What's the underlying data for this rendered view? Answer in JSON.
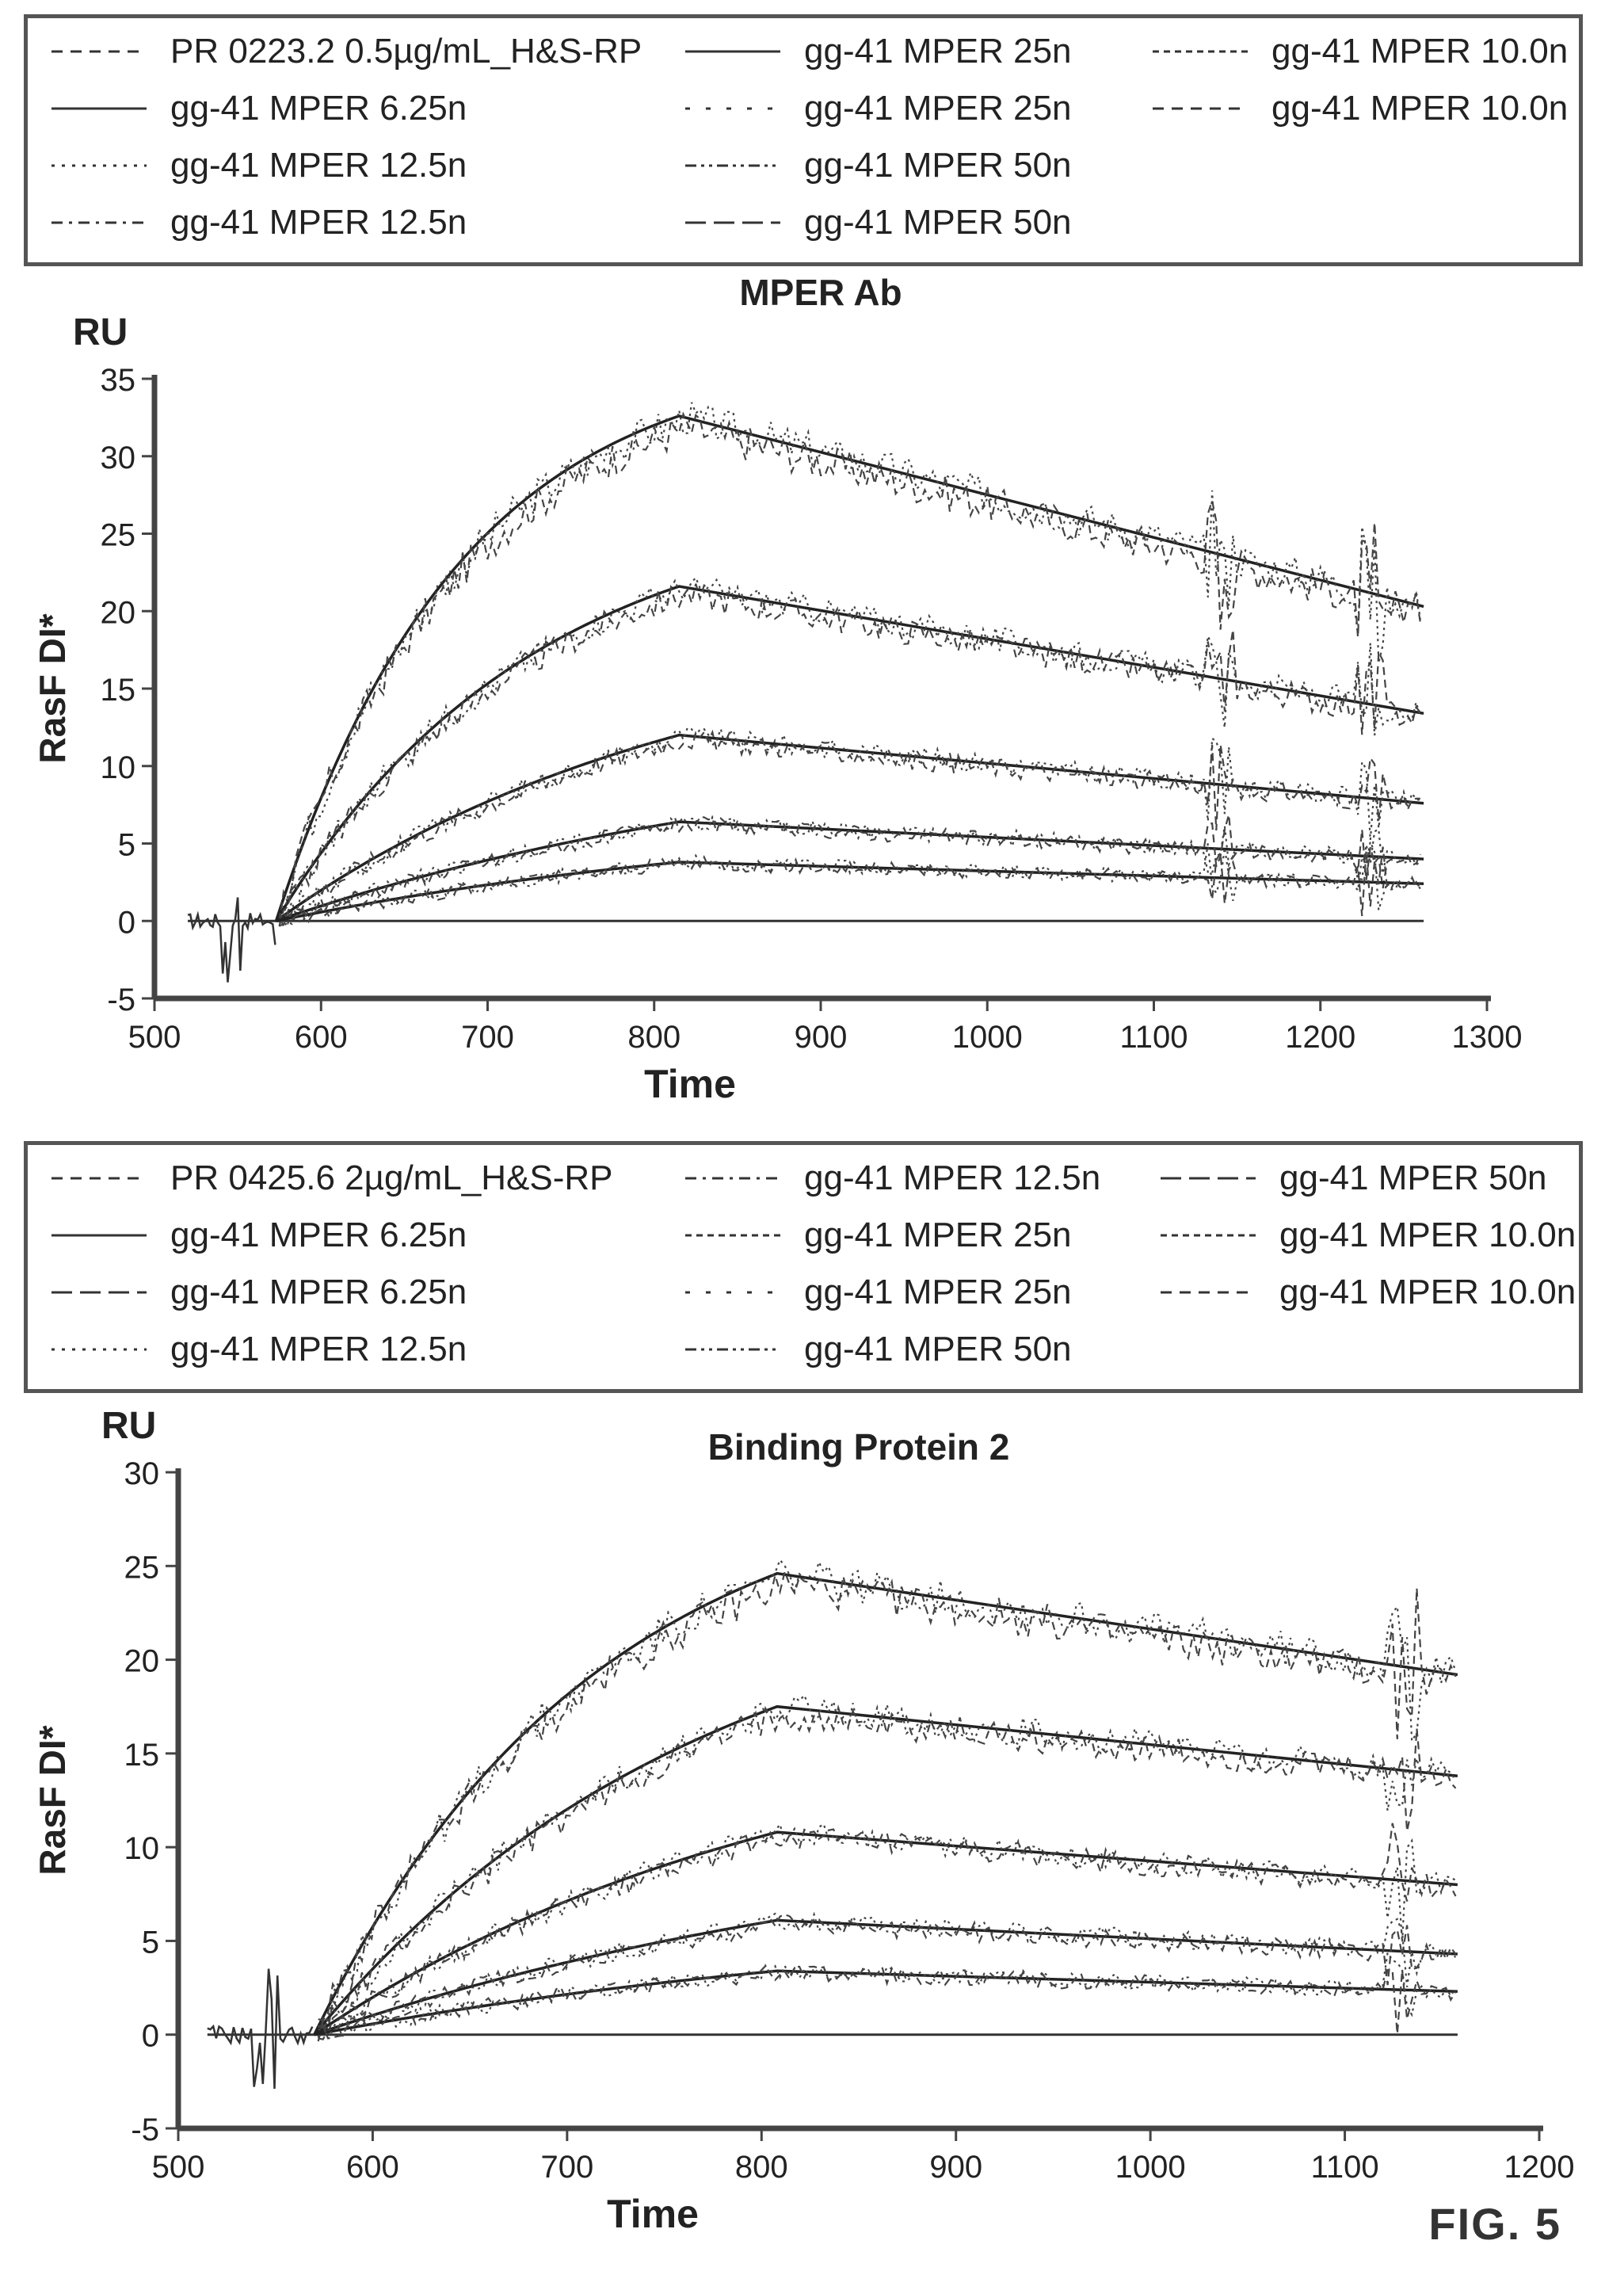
{
  "figure_label": "FIG. 5",
  "charts": [
    {
      "legend": [
        {
          "label": "PR 0223.2 0.5µg/mL_H&S-RP",
          "dash": "dashed"
        },
        {
          "label": "gg-41 MPER 6.25n",
          "dash": "solid"
        },
        {
          "label": "gg-41 MPER 12.5n",
          "dash": "dotted"
        },
        {
          "label": "gg-41 MPER 12.5n",
          "dash": "dashdot"
        },
        {
          "label": "gg-41 MPER 25n",
          "dash": "solid"
        },
        {
          "label": "gg-41 MPER 25n",
          "dash": "sparse"
        },
        {
          "label": "gg-41 MPER 50n",
          "dash": "dashdotdot"
        },
        {
          "label": "gg-41 MPER 50n",
          "dash": "longdash"
        },
        {
          "label": "gg-41 MPER 10.0n",
          "dash": "finedash"
        },
        {
          "label": "gg-41 MPER 10.0n",
          "dash": "dashed"
        }
      ]
    },
    {
      "legend": [
        {
          "label": "PR 0425.6  2µg/mL_H&S-RP",
          "dash": "dashed"
        },
        {
          "label": "gg-41 MPER 6.25n",
          "dash": "solid"
        },
        {
          "label": "gg-41 MPER 6.25n",
          "dash": "longdash"
        },
        {
          "label": "gg-41 MPER 12.5n",
          "dash": "dotted"
        },
        {
          "label": "gg-41 MPER 12.5n",
          "dash": "dashdot"
        },
        {
          "label": "gg-41 MPER 25n",
          "dash": "finedash"
        },
        {
          "label": "gg-41 MPER 25n",
          "dash": "sparse"
        },
        {
          "label": "gg-41 MPER 50n",
          "dash": "dashdotdot"
        },
        {
          "label": "gg-41 MPER 50n",
          "dash": "longdash"
        },
        {
          "label": "gg-41 MPER 10.0n",
          "dash": "finedash"
        },
        {
          "label": "gg-41 MPER 10.0n",
          "dash": "dashed"
        }
      ]
    }
  ],
  "chart_data": [
    {
      "type": "line",
      "title": "MPER Ab",
      "ylabel": "RasF DI*",
      "yunit": "RU",
      "xlabel": "Time",
      "xlim": [
        500,
        1300
      ],
      "ylim": [
        -5,
        35
      ],
      "xticks": [
        500,
        600,
        700,
        800,
        900,
        1000,
        1100,
        1200,
        1300
      ],
      "yticks": [
        -5,
        0,
        5,
        10,
        15,
        20,
        25,
        30,
        35
      ],
      "baseline_x": [
        520,
        1262
      ],
      "injection_start": 573,
      "injection_end": 815,
      "data_end": 1262,
      "spike_times": [
        1140,
        1230
      ],
      "curves": [
        {
          "plateau": 32.6,
          "end_value": 20.3,
          "k": 0.009
        },
        {
          "plateau": 21.6,
          "end_value": 13.4,
          "k": 0.0065
        },
        {
          "plateau": 12.0,
          "end_value": 7.6,
          "k": 0.004
        },
        {
          "plateau": 6.4,
          "end_value": 4.0,
          "k": 0.003
        },
        {
          "plateau": 3.8,
          "end_value": 2.4,
          "k": 0.003
        }
      ]
    },
    {
      "type": "line",
      "title": "Binding Protein 2",
      "ylabel": "RasF DI*",
      "yunit": "RU",
      "xlabel": "Time",
      "xlim": [
        500,
        1200
      ],
      "ylim": [
        -5,
        30
      ],
      "xticks": [
        500,
        600,
        700,
        800,
        900,
        1000,
        1100,
        1200
      ],
      "yticks": [
        -5,
        0,
        5,
        10,
        15,
        20,
        25,
        30
      ],
      "baseline_x": [
        515,
        1158
      ],
      "injection_start": 570,
      "injection_end": 808,
      "data_end": 1158,
      "spike_times": [
        1130
      ],
      "curves": [
        {
          "plateau": 24.6,
          "end_value": 19.2,
          "k": 0.007
        },
        {
          "plateau": 17.5,
          "end_value": 13.8,
          "k": 0.005
        },
        {
          "plateau": 10.8,
          "end_value": 8.0,
          "k": 0.004
        },
        {
          "plateau": 6.1,
          "end_value": 4.3,
          "k": 0.003
        },
        {
          "plateau": 3.4,
          "end_value": 2.3,
          "k": 0.003
        }
      ]
    }
  ]
}
